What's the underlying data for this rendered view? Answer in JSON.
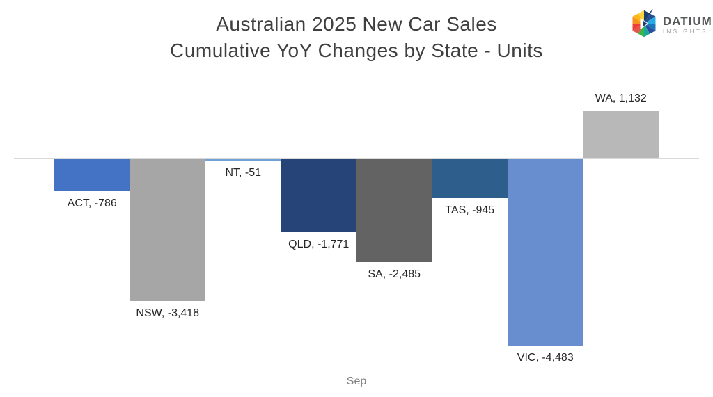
{
  "title": {
    "line1": "Australian 2025 New Car Sales",
    "line2": "Cumulative YoY Changes by State - Units"
  },
  "logo": {
    "brand": "DATIUM",
    "sub": "INSIGHTS"
  },
  "chart_data": {
    "type": "bar",
    "title": "Australian 2025 New Car Sales - Cumulative YoY Changes by State - Units",
    "categories": [
      "ACT",
      "NSW",
      "NT",
      "QLD",
      "SA",
      "TAS",
      "VIC",
      "WA"
    ],
    "values": [
      -786,
      -3418,
      -51,
      -1771,
      -2485,
      -945,
      -4483,
      1132
    ],
    "data_labels": [
      "ACT, -786",
      "NSW, -3,418",
      "NT, -51",
      "QLD, -1,771",
      "SA, -2,485",
      "TAS, -945",
      "VIC, -4,483",
      "WA, 1,132"
    ],
    "bar_colors": [
      "#4472c4",
      "#a6a6a6",
      "#6fa0d8",
      "#264478",
      "#636363",
      "#2e5f8c",
      "#698ed0",
      "#b8b8b8"
    ],
    "xlabel": "Sep",
    "ylabel": "",
    "baseline": 0,
    "grid": false,
    "legend": false,
    "axis_line_color": "#d9d9d9",
    "label_color": "#262626"
  }
}
